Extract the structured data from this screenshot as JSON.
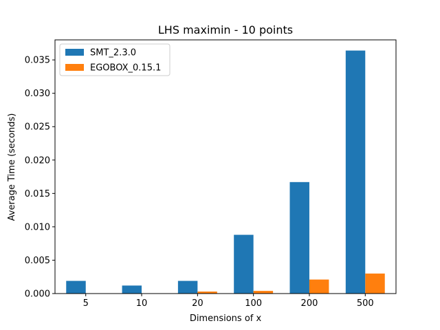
{
  "chart_data": {
    "type": "bar",
    "title": "LHS maximin - 10 points",
    "xlabel": "Dimensions of x",
    "ylabel": "Average Time (seconds)",
    "categories": [
      "5",
      "10",
      "20",
      "100",
      "200",
      "500"
    ],
    "series": [
      {
        "name": "SMT_2.3.0",
        "color": "#1f77b4",
        "values": [
          0.0019,
          0.0012,
          0.0019,
          0.0088,
          0.0167,
          0.0364
        ]
      },
      {
        "name": "EGOBOX_0.15.1",
        "color": "#ff7f0e",
        "values": [
          3e-05,
          3e-05,
          0.0003,
          0.0004,
          0.0021,
          0.003
        ]
      }
    ],
    "ylim": [
      0,
      0.038
    ],
    "yticks": [
      "0.000",
      "0.005",
      "0.010",
      "0.015",
      "0.020",
      "0.025",
      "0.030",
      "0.035"
    ],
    "grid": false,
    "legend_position": "top-left"
  }
}
